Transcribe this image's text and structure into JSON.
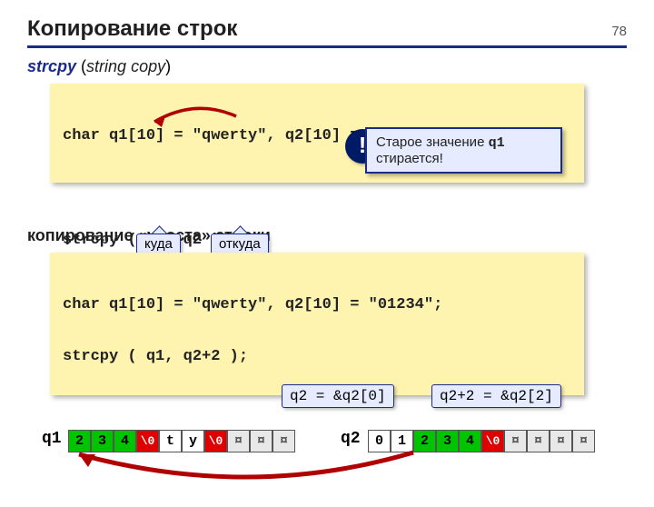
{
  "pageNumber": "78",
  "title": "Копирование строк",
  "subtitle": {
    "fn": "strcpy",
    "open": "(",
    "desc": "string copy",
    "close": ")"
  },
  "code1_line1": "char q1[10] = \"qwerty\", q2[10] = \"01234\";",
  "code1_line2": "strcpy ( q1, q2 );",
  "bang": "!",
  "warning_pre": "Старое значение ",
  "warning_mono": "q1",
  "warning_post": " стирается!",
  "tag_kuda": "куда",
  "tag_otkuda": "откуда",
  "section2": "копирование «хвоста» строки",
  "code2_line1": "char q1[10] = \"qwerty\", q2[10] = \"01234\";",
  "code2_line2": "strcpy ( q1, q2+2 );",
  "eq1": "q2 = &q2[0]",
  "eq2": "q2+2 = &q2[2]",
  "label_q1": "q1",
  "label_q2": "q2",
  "q1_cells": [
    {
      "t": "2",
      "bg": "#00c400",
      "fg": "#000"
    },
    {
      "t": "3",
      "bg": "#00c400",
      "fg": "#000"
    },
    {
      "t": "4",
      "bg": "#00c400",
      "fg": "#000"
    },
    {
      "t": "\\0",
      "bg": "#e00000",
      "fg": "#fff"
    },
    {
      "t": "t",
      "bg": "#ffffff",
      "fg": "#000"
    },
    {
      "t": "y",
      "bg": "#ffffff",
      "fg": "#000"
    },
    {
      "t": "\\0",
      "bg": "#e00000",
      "fg": "#fff"
    },
    {
      "t": "¤",
      "bg": "#e8e8e8",
      "fg": "#555"
    },
    {
      "t": "¤",
      "bg": "#e8e8e8",
      "fg": "#555"
    },
    {
      "t": "¤",
      "bg": "#e8e8e8",
      "fg": "#555"
    }
  ],
  "q2_cells": [
    {
      "t": "0",
      "bg": "#ffffff",
      "fg": "#000"
    },
    {
      "t": "1",
      "bg": "#ffffff",
      "fg": "#000"
    },
    {
      "t": "2",
      "bg": "#00c400",
      "fg": "#000"
    },
    {
      "t": "3",
      "bg": "#00c400",
      "fg": "#000"
    },
    {
      "t": "4",
      "bg": "#00c400",
      "fg": "#000"
    },
    {
      "t": "\\0",
      "bg": "#e00000",
      "fg": "#fff"
    },
    {
      "t": "¤",
      "bg": "#e8e8e8",
      "fg": "#555"
    },
    {
      "t": "¤",
      "bg": "#e8e8e8",
      "fg": "#555"
    },
    {
      "t": "¤",
      "bg": "#e8e8e8",
      "fg": "#555"
    },
    {
      "t": "¤",
      "bg": "#e8e8e8",
      "fg": "#555"
    }
  ],
  "colors": {
    "green": "#00c400",
    "red": "#e00000",
    "gray": "#e8e8e8",
    "arc": "#b00000",
    "rule": "#1a2b8a"
  }
}
